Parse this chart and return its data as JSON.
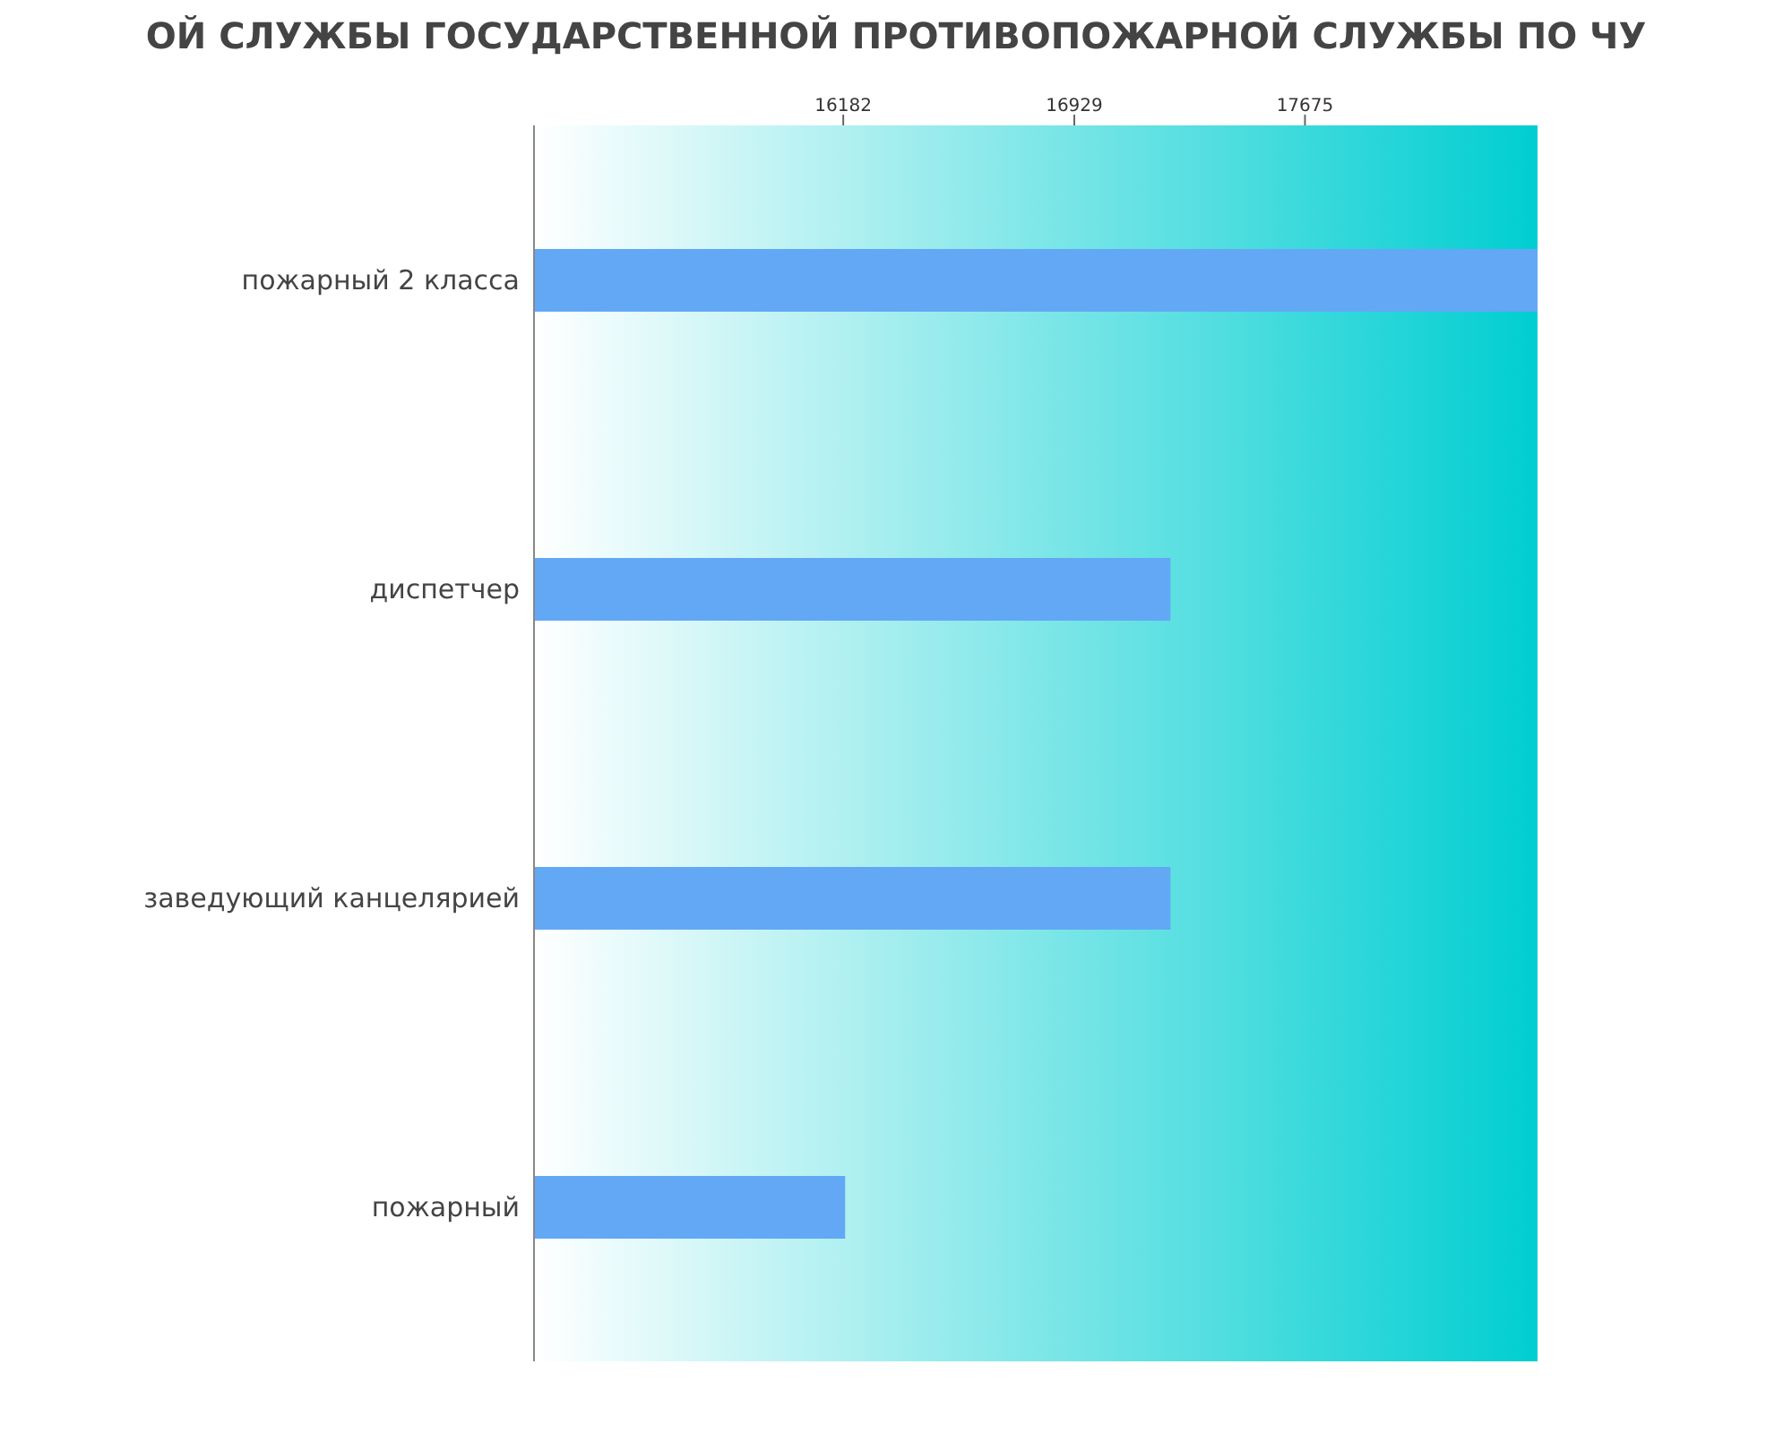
{
  "chart_data": {
    "type": "bar",
    "orientation": "horizontal",
    "title": "ОЙ СЛУЖБЫ ГОСУДАРСТВЕННОЙ ПРОТИВОПОЖАРНОЙ СЛУЖБЫ ПО ЧУ",
    "categories": [
      "пожарный 2 класса",
      "диспетчер",
      "заведующий канцелярией",
      "пожарный"
    ],
    "values": [
      18427,
      17240,
      17240,
      16188
    ],
    "color": "#63a8f5",
    "xlim": [
      15182,
      18427
    ],
    "xticks": [
      16182,
      16929,
      17675
    ]
  }
}
